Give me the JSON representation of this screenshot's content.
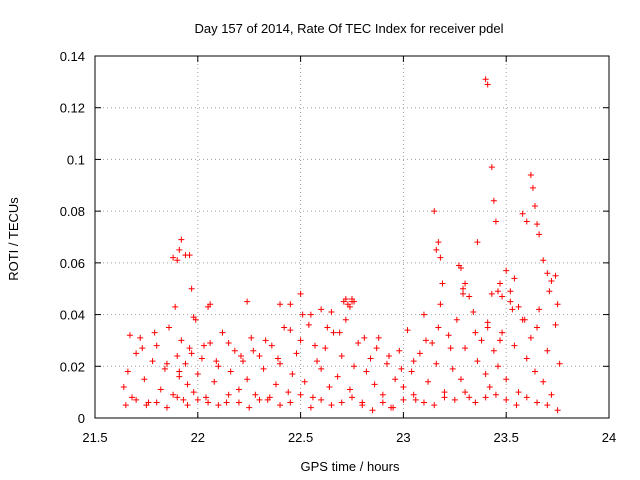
{
  "chart_data": {
    "type": "scatter",
    "title": "Day 157 of 2014, Rate Of TEC Index for receiver pdel",
    "xlabel": "GPS time / hours",
    "ylabel": "ROTI / TECUs",
    "xlim": [
      21.5,
      24
    ],
    "ylim": [
      0,
      0.14
    ],
    "xticks": [
      21.5,
      22,
      22.5,
      23,
      23.5,
      24
    ],
    "xtick_labels": [
      "21.5",
      "22",
      "22.5",
      "23",
      "23.5",
      "24"
    ],
    "yticks": [
      0,
      0.02,
      0.04,
      0.06,
      0.08,
      0.1,
      0.12,
      0.14
    ],
    "ytick_labels": [
      "0",
      "0.02",
      "0.04",
      "0.06",
      "0.08",
      "0.1",
      "0.12",
      "0.14"
    ],
    "grid": true,
    "marker": "+",
    "color": "#ff0000",
    "series": [
      {
        "name": "ROTI",
        "x": [
          21.64,
          21.66,
          21.68,
          21.7,
          21.72,
          21.74,
          21.76,
          21.78,
          21.8,
          21.82,
          21.84,
          21.86,
          21.88,
          21.9,
          21.91,
          21.92,
          21.93,
          21.94,
          21.95,
          21.96,
          21.98,
          22.0,
          22.02,
          22.04,
          22.06,
          22.08,
          22.1,
          22.12,
          22.14,
          22.16,
          22.18,
          22.2,
          22.22,
          22.24,
          22.26,
          22.28,
          22.3,
          22.32,
          22.34,
          22.36,
          22.38,
          22.4,
          22.42,
          22.44,
          22.46,
          22.48,
          22.5,
          22.52,
          22.54,
          22.56,
          22.58,
          22.6,
          22.62,
          22.64,
          22.66,
          22.68,
          22.7,
          22.72,
          22.74,
          22.76,
          22.78,
          22.8,
          22.82,
          22.84,
          22.86,
          22.88,
          22.9,
          22.92,
          22.94,
          22.96,
          22.98,
          23.0,
          23.02,
          23.04,
          23.06,
          23.08,
          23.1,
          23.12,
          23.14,
          23.16,
          23.18,
          23.2,
          23.22,
          23.24,
          23.26,
          23.28,
          23.3,
          23.32,
          23.34,
          23.36,
          23.38,
          23.4,
          23.41,
          23.42,
          23.43,
          23.44,
          23.46,
          23.48,
          23.5,
          23.52,
          23.54,
          23.56,
          23.58,
          23.6,
          23.62,
          23.64,
          23.66,
          23.68,
          23.7,
          23.72,
          23.74,
          23.76,
          21.65,
          21.7,
          21.75,
          21.8,
          21.85,
          21.9,
          21.95,
          22.0,
          22.05,
          22.1,
          22.15,
          22.2,
          22.25,
          22.3,
          22.35,
          22.4,
          22.45,
          22.5,
          22.55,
          22.6,
          22.65,
          22.7,
          22.75,
          22.8,
          22.85,
          22.9,
          22.95,
          23.0,
          23.05,
          23.1,
          23.15,
          23.2,
          23.25,
          23.3,
          23.35,
          23.4,
          23.45,
          23.5,
          23.55,
          23.6,
          23.65,
          23.7,
          23.75,
          21.67,
          21.73,
          21.79,
          21.85,
          21.91,
          21.97,
          22.03,
          22.09,
          22.15,
          22.21,
          22.27,
          22.33,
          22.39,
          22.45,
          22.51,
          22.57,
          22.63,
          22.69,
          22.75,
          22.81,
          22.87,
          22.93,
          22.99,
          23.05,
          23.11,
          23.17,
          23.23,
          23.29,
          23.35,
          23.41,
          23.47,
          23.53,
          23.59,
          23.65,
          23.71,
          23.4,
          23.41,
          23.43,
          23.44,
          23.45,
          23.62,
          23.63,
          23.64,
          23.65,
          23.66,
          23.58,
          23.6,
          23.15,
          23.16,
          23.17,
          23.18,
          23.19,
          23.27,
          23.28,
          23.29,
          23.3,
          23.32,
          23.36,
          23.46,
          23.47,
          23.48,
          23.5,
          23.52,
          23.54,
          23.56,
          23.68,
          23.7,
          23.72,
          23.74,
          22.71,
          22.72,
          22.73,
          22.74,
          22.75,
          22.76,
          22.45,
          22.5,
          22.55,
          22.6,
          22.65,
          21.88,
          21.89,
          21.9,
          21.91,
          21.92,
          21.94,
          21.96,
          21.97,
          21.98,
          21.99,
          22.05,
          22.06,
          22.24,
          22.4,
          23.75
        ],
        "y": [
          0.012,
          0.018,
          0.008,
          0.025,
          0.031,
          0.015,
          0.006,
          0.022,
          0.028,
          0.011,
          0.019,
          0.035,
          0.009,
          0.024,
          0.016,
          0.03,
          0.007,
          0.021,
          0.013,
          0.027,
          0.01,
          0.017,
          0.023,
          0.008,
          0.029,
          0.014,
          0.02,
          0.033,
          0.006,
          0.018,
          0.026,
          0.011,
          0.022,
          0.015,
          0.031,
          0.009,
          0.024,
          0.019,
          0.007,
          0.028,
          0.013,
          0.021,
          0.035,
          0.01,
          0.017,
          0.025,
          0.03,
          0.014,
          0.036,
          0.008,
          0.022,
          0.019,
          0.027,
          0.012,
          0.033,
          0.016,
          0.024,
          0.038,
          0.011,
          0.02,
          0.029,
          0.006,
          0.018,
          0.023,
          0.013,
          0.031,
          0.009,
          0.021,
          0.004,
          0.015,
          0.026,
          0.012,
          0.034,
          0.018,
          0.007,
          0.025,
          0.04,
          0.014,
          0.029,
          0.021,
          0.044,
          0.01,
          0.032,
          0.019,
          0.038,
          0.015,
          0.027,
          0.008,
          0.041,
          0.022,
          0.03,
          0.017,
          0.035,
          0.012,
          0.048,
          0.026,
          0.02,
          0.033,
          0.015,
          0.045,
          0.028,
          0.01,
          0.038,
          0.023,
          0.031,
          0.018,
          0.042,
          0.014,
          0.026,
          0.009,
          0.036,
          0.021,
          0.005,
          0.007,
          0.005,
          0.006,
          0.004,
          0.008,
          0.005,
          0.007,
          0.006,
          0.005,
          0.009,
          0.006,
          0.004,
          0.007,
          0.008,
          0.005,
          0.006,
          0.009,
          0.004,
          0.007,
          0.005,
          0.006,
          0.008,
          0.005,
          0.003,
          0.006,
          0.004,
          0.007,
          0.009,
          0.006,
          0.005,
          0.008,
          0.007,
          0.01,
          0.006,
          0.008,
          0.009,
          0.007,
          0.005,
          0.008,
          0.006,
          0.005,
          0.003,
          0.032,
          0.027,
          0.033,
          0.021,
          0.018,
          0.025,
          0.028,
          0.022,
          0.029,
          0.024,
          0.026,
          0.03,
          0.023,
          0.034,
          0.04,
          0.028,
          0.035,
          0.033,
          0.045,
          0.031,
          0.027,
          0.024,
          0.019,
          0.022,
          0.03,
          0.035,
          0.027,
          0.048,
          0.033,
          0.037,
          0.03,
          0.042,
          0.038,
          0.035,
          0.049,
          0.131,
          0.129,
          0.097,
          0.084,
          0.076,
          0.094,
          0.089,
          0.082,
          0.075,
          0.071,
          0.079,
          0.076,
          0.08,
          0.065,
          0.068,
          0.062,
          0.052,
          0.059,
          0.058,
          0.05,
          0.052,
          0.047,
          0.068,
          0.049,
          0.052,
          0.047,
          0.057,
          0.049,
          0.054,
          0.043,
          0.061,
          0.056,
          0.053,
          0.055,
          0.045,
          0.046,
          0.044,
          0.043,
          0.046,
          0.045,
          0.044,
          0.048,
          0.04,
          0.042,
          0.041,
          0.062,
          0.043,
          0.061,
          0.065,
          0.069,
          0.063,
          0.063,
          0.05,
          0.039,
          0.038,
          0.043,
          0.044,
          0.045,
          0.044,
          0.044
        ]
      }
    ]
  }
}
